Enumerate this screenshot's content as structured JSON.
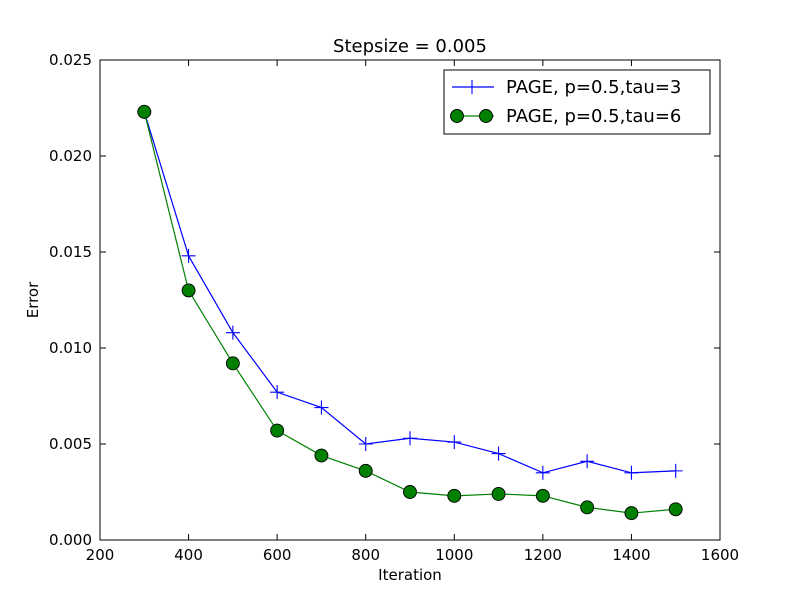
{
  "chart_data": {
    "type": "line",
    "title": "Stepsize = 0.005",
    "xlabel": "Iteration",
    "ylabel": "Error",
    "xlim": [
      200,
      1600
    ],
    "ylim": [
      0.0,
      0.025
    ],
    "xticks": [
      200,
      400,
      600,
      800,
      1000,
      1200,
      1400,
      1600
    ],
    "xtick_labels": [
      "200",
      "400",
      "600",
      "800",
      "1000",
      "1200",
      "1400",
      "1600"
    ],
    "yticks": [
      0.0,
      0.005,
      0.01,
      0.015,
      0.02,
      0.025
    ],
    "ytick_labels": [
      "0.000",
      "0.005",
      "0.010",
      "0.015",
      "0.020",
      "0.025"
    ],
    "grid": false,
    "legend_position": "top-right",
    "x": [
      300,
      400,
      500,
      600,
      700,
      800,
      900,
      1000,
      1100,
      1200,
      1300,
      1400,
      1500
    ],
    "series": [
      {
        "name": "PAGE, p=0.5,tau=3",
        "color": "#0000ff",
        "marker": "plus",
        "values": [
          0.0223,
          0.0148,
          0.0108,
          0.0077,
          0.0069,
          0.005,
          0.0053,
          0.0051,
          0.0045,
          0.0035,
          0.0041,
          0.0035,
          0.0036
        ]
      },
      {
        "name": "PAGE, p=0.5,tau=6",
        "color": "#008000",
        "marker": "circle",
        "values": [
          0.0223,
          0.013,
          0.0092,
          0.0057,
          0.0044,
          0.0036,
          0.0025,
          0.0023,
          0.0024,
          0.0023,
          0.0017,
          0.0014,
          0.0016
        ]
      }
    ]
  }
}
